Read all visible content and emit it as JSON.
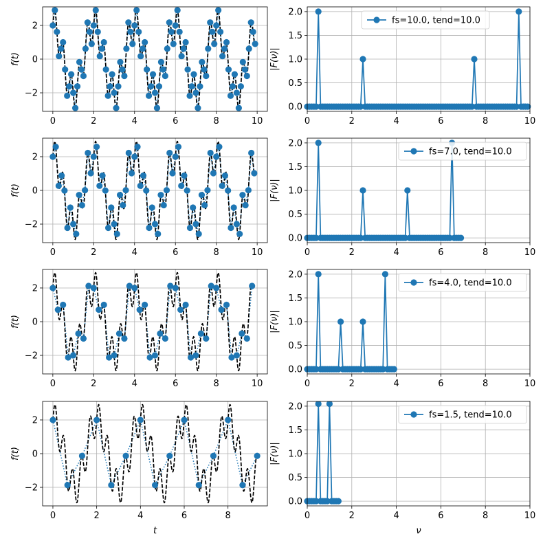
{
  "colors": {
    "series": "#1f77b4",
    "continuous": "#000000",
    "grid": "#b0b0b0"
  },
  "chart_data": [
    {
      "id": "time-fs10",
      "type": "line",
      "xlabel": "",
      "ylabel": "f(t)",
      "xlim": [
        -0.5,
        10.5
      ],
      "ylim": [
        -3.1,
        3.1
      ],
      "xticks": [
        0,
        2,
        4,
        6,
        8,
        10
      ],
      "yticks": [
        -2,
        0,
        2
      ],
      "grid": true,
      "continuous_signal": "f(t) = 2 cos(2π·0.5·t) + sin(2π·2.5·t), dashed black",
      "fs": 10.0,
      "tend": 10.0
    },
    {
      "id": "freq-fs10",
      "type": "line",
      "xlabel": "",
      "ylabel": "|F(ν)|",
      "xlim": [
        0,
        10
      ],
      "ylim": [
        -0.1,
        2.1
      ],
      "xticks": [
        0,
        2,
        4,
        6,
        8,
        10
      ],
      "yticks": [
        0.0,
        0.5,
        1.0,
        1.5,
        2.0
      ],
      "grid": true,
      "legend_position": "top-center",
      "series": [
        {
          "name": "fs=10.0, tend=10.0",
          "n": 100,
          "df": 0.1,
          "peaks": [
            [
              0.5,
              2.0
            ],
            [
              2.5,
              1.0
            ],
            [
              7.5,
              1.0
            ],
            [
              9.5,
              2.0
            ]
          ]
        }
      ]
    },
    {
      "id": "time-fs7",
      "type": "line",
      "xlabel": "",
      "ylabel": "f(t)",
      "xlim": [
        -0.5,
        10.5
      ],
      "ylim": [
        -3.1,
        3.1
      ],
      "xticks": [
        0,
        2,
        4,
        6,
        8,
        10
      ],
      "yticks": [
        -2,
        0,
        2
      ],
      "grid": true,
      "fs": 7.0,
      "tend": 10.0
    },
    {
      "id": "freq-fs7",
      "type": "line",
      "xlabel": "",
      "ylabel": "|F(ν)|",
      "xlim": [
        0,
        10
      ],
      "ylim": [
        -0.1,
        2.1
      ],
      "xticks": [
        0,
        2,
        4,
        6,
        8,
        10
      ],
      "yticks": [
        0.0,
        0.5,
        1.0,
        1.5,
        2.0
      ],
      "grid": true,
      "legend_position": "top-right",
      "series": [
        {
          "name": "fs=7.0, tend=10.0",
          "n": 70,
          "df": 0.1,
          "peaks": [
            [
              0.5,
              2.0
            ],
            [
              2.5,
              1.0
            ],
            [
              4.5,
              1.0
            ],
            [
              6.5,
              2.0
            ]
          ]
        }
      ]
    },
    {
      "id": "time-fs4",
      "type": "line",
      "xlabel": "",
      "ylabel": "f(t)",
      "xlim": [
        -0.5,
        10.5
      ],
      "ylim": [
        -3.1,
        3.1
      ],
      "xticks": [
        0,
        2,
        4,
        6,
        8,
        10
      ],
      "yticks": [
        -2,
        0,
        2
      ],
      "grid": true,
      "fs": 4.0,
      "tend": 10.0
    },
    {
      "id": "freq-fs4",
      "type": "line",
      "xlabel": "",
      "ylabel": "|F(ν)|",
      "xlim": [
        0,
        10
      ],
      "ylim": [
        -0.1,
        2.1
      ],
      "xticks": [
        0,
        2,
        4,
        6,
        8,
        10
      ],
      "yticks": [
        0.0,
        0.5,
        1.0,
        1.5,
        2.0
      ],
      "grid": true,
      "legend_position": "top-right",
      "series": [
        {
          "name": "fs=4.0, tend=10.0",
          "n": 40,
          "df": 0.1,
          "peaks": [
            [
              0.5,
              2.0
            ],
            [
              1.5,
              1.0
            ],
            [
              2.5,
              1.0
            ],
            [
              3.5,
              2.0
            ]
          ]
        }
      ]
    },
    {
      "id": "time-fs1.5",
      "type": "line",
      "xlabel": "t",
      "ylabel": "f(t)",
      "xlim": [
        -0.47,
        9.8
      ],
      "ylim": [
        -3.1,
        3.1
      ],
      "xticks": [
        0,
        2,
        4,
        6,
        8
      ],
      "yticks": [
        -2,
        0,
        2
      ],
      "grid": true,
      "fs": 1.5,
      "tend": 10.0
    },
    {
      "id": "freq-fs1.5",
      "type": "line",
      "xlabel": "ν",
      "ylabel": "|F(ν)|",
      "xlim": [
        0,
        10
      ],
      "ylim": [
        -0.1,
        2.1
      ],
      "xticks": [
        0,
        2,
        4,
        6,
        8,
        10
      ],
      "yticks": [
        0.0,
        0.5,
        1.0,
        1.5,
        2.0
      ],
      "grid": true,
      "legend_position": "top-right",
      "series": [
        {
          "name": "fs=1.5, tend=10.0",
          "n": 15,
          "df": 0.1,
          "peaks": [
            [
              0.5,
              2.05
            ],
            [
              1.0,
              2.05
            ]
          ]
        }
      ]
    }
  ]
}
